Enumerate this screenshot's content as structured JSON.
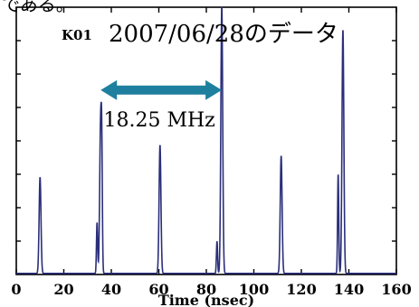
{
  "header_text": "である。",
  "chart_data": {
    "type": "line",
    "panel_label": "K01",
    "title": "2007/06/28のデータ",
    "xlabel": "Time (nsec)",
    "ylabel": "",
    "xlim": [
      0,
      160
    ],
    "ylim": [
      0,
      1.0
    ],
    "x_ticks": [
      0,
      20,
      40,
      60,
      80,
      100,
      120,
      140,
      160
    ],
    "grid": false,
    "series": [
      {
        "color": "#2b2f7a",
        "peaks": [
          {
            "x": 10.0,
            "y": 0.36
          },
          {
            "x": 35.5,
            "y": 0.56
          },
          {
            "x": 60.5,
            "y": 0.48
          },
          {
            "x": 86.5,
            "y": 1.0
          },
          {
            "x": 111.5,
            "y": 0.44
          },
          {
            "x": 137.5,
            "y": 0.91
          }
        ],
        "secondary_peaks": [
          {
            "x": 34.0,
            "y": 0.19
          },
          {
            "x": 36.0,
            "y": 0.31
          },
          {
            "x": 84.5,
            "y": 0.12
          },
          {
            "x": 135.5,
            "y": 0.37
          }
        ]
      }
    ],
    "annotation": {
      "text": "18.25 MHz",
      "arrow_from_x": 35.5,
      "arrow_to_x": 86.5,
      "arrow_level_y": 0.69,
      "color": "#1f7f9e"
    }
  }
}
